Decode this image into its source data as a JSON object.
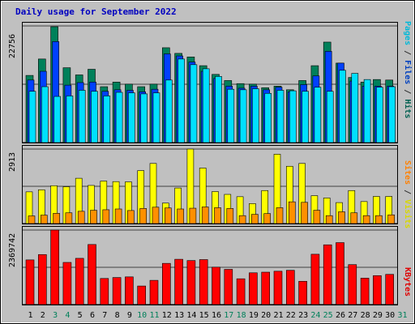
{
  "title": "Daily usage for September 2022",
  "y_max_labels": {
    "top": "22756",
    "middle": "2913",
    "bottom": "2369742"
  },
  "legend": {
    "top": [
      {
        "text": "Hits",
        "color": "#006050"
      },
      {
        "text": " / ",
        "color": "#303030"
      },
      {
        "text": "Files",
        "color": "#0040c0"
      },
      {
        "text": " / ",
        "color": "#303030"
      },
      {
        "text": "Pages",
        "color": "#00b8d8"
      }
    ],
    "middle": [
      {
        "text": "Visits",
        "color": "#d8d800"
      },
      {
        "text": " / ",
        "color": "#303030"
      },
      {
        "text": "Sites",
        "color": "#ff8000"
      }
    ],
    "bottom": [
      {
        "text": "KBytes",
        "color": "#e00000"
      }
    ]
  },
  "day_labels": [
    "1",
    "2",
    "3",
    "4",
    "5",
    "6",
    "7",
    "8",
    "9",
    "10",
    "11",
    "12",
    "13",
    "14",
    "15",
    "16",
    "17",
    "18",
    "19",
    "20",
    "21",
    "22",
    "23",
    "24",
    "25",
    "26",
    "27",
    "28",
    "29",
    "30",
    "31"
  ],
  "weekend_days": [
    3,
    4,
    10,
    11,
    17,
    18,
    24,
    25,
    31
  ],
  "colors": {
    "hits": "#00805a",
    "files": "#0040ff",
    "pages": "#00e0ff",
    "visits": "#ffff00",
    "sites": "#ff9000",
    "kbytes": "#ff0000"
  },
  "chart_data": [
    {
      "type": "bar",
      "name": "hits-files-pages",
      "categories": [
        "1",
        "2",
        "3",
        "4",
        "5",
        "6",
        "7",
        "8",
        "9",
        "10",
        "11",
        "12",
        "13",
        "14",
        "15",
        "16",
        "17",
        "18",
        "19",
        "20",
        "21",
        "22",
        "23",
        "24",
        "25",
        "26",
        "27",
        "28",
        "29",
        "30"
      ],
      "ylim": [
        0,
        22756
      ],
      "series": [
        {
          "name": "Hits",
          "values": [
            13100,
            16300,
            22600,
            14600,
            13200,
            14300,
            10900,
            11800,
            11400,
            10900,
            11400,
            18500,
            17400,
            16700,
            15000,
            13300,
            12100,
            11500,
            11400,
            10700,
            11000,
            10300,
            12100,
            15000,
            19600,
            15500,
            12700,
            11800,
            12300,
            12200
          ]
        },
        {
          "name": "Files",
          "values": [
            12200,
            13900,
            19700,
            11200,
            11700,
            11800,
            10000,
            10300,
            10200,
            9900,
            10400,
            17300,
            16900,
            15700,
            13900,
            12500,
            11000,
            10600,
            11000,
            10300,
            10800,
            9900,
            11300,
            13000,
            17800,
            15500,
            12000,
            11000,
            11000,
            11000
          ]
        },
        {
          "name": "Pages",
          "values": [
            10000,
            10900,
            9000,
            9100,
            10200,
            10000,
            9100,
            9800,
            9700,
            9500,
            9700,
            12200,
            16300,
            15200,
            14400,
            12900,
            10400,
            10300,
            10500,
            9600,
            10200,
            10100,
            10000,
            10800,
            10000,
            14100,
            13500,
            12300,
            10800,
            10900
          ]
        }
      ]
    },
    {
      "type": "bar",
      "name": "visits-sites",
      "categories": [
        "1",
        "2",
        "3",
        "4",
        "5",
        "6",
        "7",
        "8",
        "9",
        "10",
        "11",
        "12",
        "13",
        "14",
        "15",
        "16",
        "17",
        "18",
        "19",
        "20",
        "21",
        "22",
        "23",
        "24",
        "25",
        "26",
        "27",
        "28",
        "29",
        "30"
      ],
      "ylim": [
        0,
        2913
      ],
      "series": [
        {
          "name": "Visits",
          "values": [
            1240,
            1320,
            1480,
            1440,
            1770,
            1490,
            1660,
            1640,
            1630,
            2070,
            2350,
            800,
            1390,
            2913,
            2170,
            1250,
            1140,
            1050,
            780,
            1290,
            2710,
            2240,
            2350,
            1090,
            1000,
            820,
            1290,
            860,
            1060,
            1060
          ]
        },
        {
          "name": "Sites",
          "values": [
            300,
            330,
            400,
            420,
            480,
            520,
            540,
            570,
            510,
            590,
            640,
            610,
            570,
            600,
            650,
            620,
            590,
            310,
            360,
            390,
            620,
            850,
            830,
            520,
            310,
            460,
            420,
            310,
            310,
            340
          ]
        }
      ]
    },
    {
      "type": "bar",
      "name": "kbytes",
      "categories": [
        "1",
        "2",
        "3",
        "4",
        "5",
        "6",
        "7",
        "8",
        "9",
        "10",
        "11",
        "12",
        "13",
        "14",
        "15",
        "16",
        "17",
        "18",
        "19",
        "20",
        "21",
        "22",
        "23",
        "24",
        "25",
        "26",
        "27",
        "28",
        "29",
        "30"
      ],
      "ylim": [
        0,
        2369742
      ],
      "series": [
        {
          "name": "KBytes",
          "values": [
            1420000,
            1590000,
            2369742,
            1340000,
            1470000,
            1910000,
            830000,
            860000,
            880000,
            590000,
            770000,
            1310000,
            1440000,
            1400000,
            1430000,
            1190000,
            1120000,
            820000,
            1010000,
            1030000,
            1060000,
            1090000,
            740000,
            1600000,
            1900000,
            1970000,
            1270000,
            840000,
            920000,
            960000
          ]
        }
      ]
    }
  ]
}
